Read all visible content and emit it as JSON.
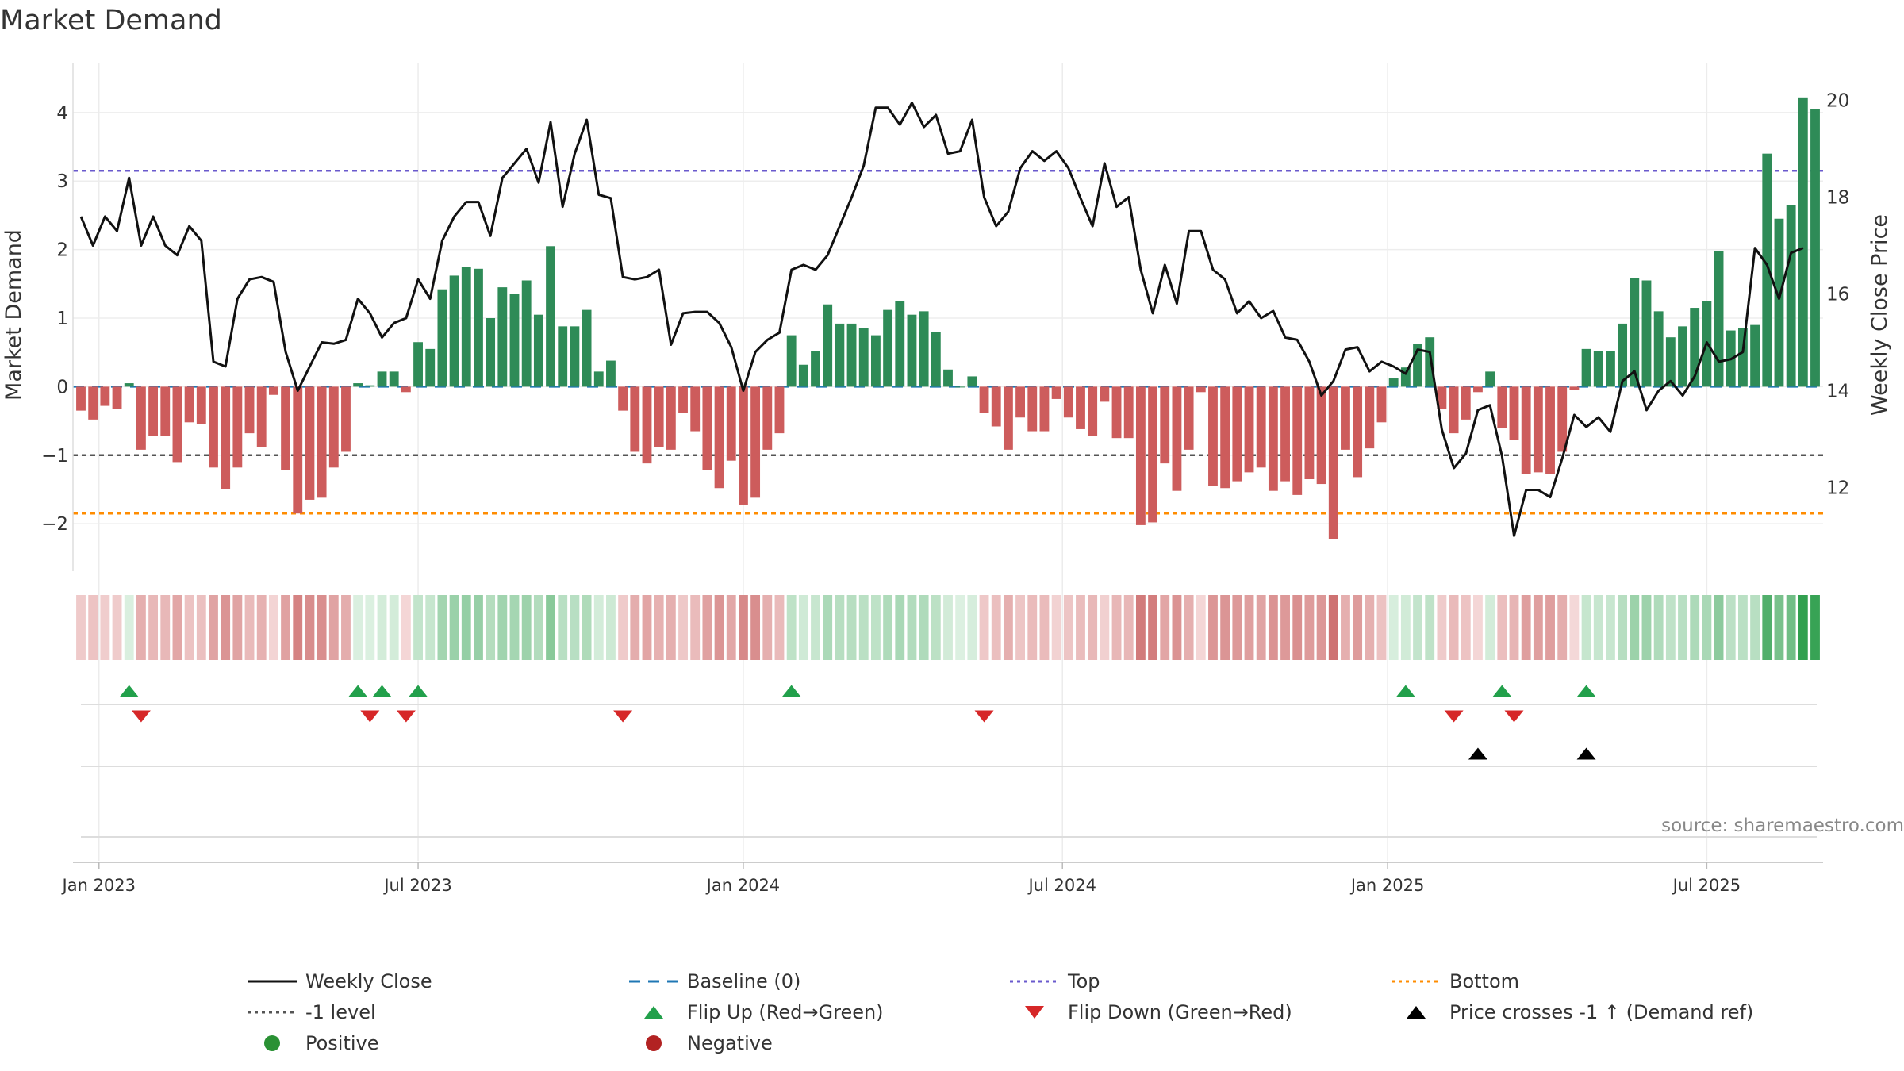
{
  "title": "Market Demand",
  "chart_data": {
    "type": "bar",
    "title": "Market Demand",
    "ylabel": "Market Demand",
    "y2label": "Weekly Close Price",
    "ylim": [
      -2.6,
      4.6
    ],
    "y2lim": [
      10.4,
      20.6
    ],
    "yticks": [
      "4",
      "3",
      "2",
      "1",
      "0",
      "−1",
      "−2"
    ],
    "yticks_values": [
      4,
      3,
      2,
      1,
      0,
      -1,
      -2
    ],
    "y2ticks": [
      "20",
      "18",
      "16",
      "14",
      "12"
    ],
    "y2ticks_values": [
      20,
      18,
      16,
      14,
      12
    ],
    "xticks": [
      "Jan 2023",
      "Jul 2023",
      "Jan 2024",
      "Jul 2024",
      "Jan 2025",
      "Jul 2025"
    ],
    "xticks_index": [
      1.5,
      28,
      55,
      81.5,
      108.5,
      135
    ],
    "reference_lines": {
      "top": 3.15,
      "minus_one": -1.0,
      "bottom": -1.85,
      "baseline": 0
    },
    "demand": [
      -0.35,
      -0.48,
      -0.28,
      -0.32,
      0.05,
      -0.92,
      -0.72,
      -0.72,
      -1.1,
      -0.52,
      -0.55,
      -1.18,
      -1.5,
      -1.18,
      -0.68,
      -0.88,
      -0.12,
      -1.22,
      -1.85,
      -1.65,
      -1.62,
      -1.18,
      -0.95,
      0.05,
      0.02,
      0.22,
      0.22,
      -0.08,
      0.65,
      0.55,
      1.42,
      1.62,
      1.75,
      1.72,
      1.0,
      1.45,
      1.35,
      1.55,
      1.05,
      2.05,
      0.88,
      0.88,
      1.12,
      0.22,
      0.38,
      -0.35,
      -0.95,
      -1.12,
      -0.88,
      -0.92,
      -0.38,
      -0.65,
      -1.22,
      -1.48,
      -1.08,
      -1.72,
      -1.62,
      -0.92,
      -0.68,
      0.75,
      0.32,
      0.52,
      1.2,
      0.92,
      0.92,
      0.85,
      0.75,
      1.12,
      1.25,
      1.05,
      1.1,
      0.8,
      0.25,
      0.0,
      0.15,
      -0.38,
      -0.58,
      -0.92,
      -0.45,
      -0.65,
      -0.65,
      -0.18,
      -0.45,
      -0.62,
      -0.72,
      -0.22,
      -0.75,
      -0.75,
      -2.02,
      -1.98,
      -1.12,
      -1.52,
      -0.92,
      -0.08,
      -1.45,
      -1.48,
      -1.38,
      -1.25,
      -1.18,
      -1.52,
      -1.38,
      -1.58,
      -1.35,
      -1.42,
      -2.22,
      -0.92,
      -1.32,
      -0.9,
      -0.52,
      0.12,
      0.28,
      0.62,
      0.72,
      -0.32,
      -0.68,
      -0.48,
      -0.08,
      0.22,
      -0.6,
      -0.78,
      -1.28,
      -1.25,
      -1.28,
      -0.95,
      -0.05,
      0.55,
      0.52,
      0.52,
      0.92,
      1.58,
      1.55,
      1.1,
      0.72,
      0.88,
      1.15,
      1.25,
      1.98,
      0.82,
      0.85,
      0.9,
      3.4,
      2.45,
      2.65,
      4.22,
      4.05
    ],
    "close": [
      17.6,
      17.0,
      17.6,
      17.3,
      18.4,
      17.0,
      17.6,
      17.0,
      16.8,
      17.4,
      17.1,
      14.6,
      14.5,
      15.9,
      16.3,
      16.35,
      16.25,
      14.8,
      14.0,
      14.5,
      15.0,
      14.97,
      15.05,
      15.9,
      15.6,
      15.1,
      15.4,
      15.5,
      16.3,
      15.9,
      17.1,
      17.6,
      17.9,
      17.9,
      17.2,
      18.4,
      18.7,
      19.0,
      18.3,
      19.55,
      17.8,
      18.9,
      19.6,
      18.05,
      17.98,
      16.35,
      16.3,
      16.35,
      16.5,
      14.95,
      15.6,
      15.63,
      15.63,
      15.4,
      14.9,
      14.0,
      14.8,
      15.05,
      15.2,
      16.5,
      16.6,
      16.5,
      16.8,
      17.4,
      18.0,
      18.65,
      19.85,
      19.85,
      19.5,
      19.95,
      19.45,
      19.7,
      18.9,
      18.95,
      19.6,
      18.0,
      17.4,
      17.7,
      18.6,
      18.95,
      18.75,
      18.95,
      18.6,
      17.98,
      17.4,
      18.7,
      17.8,
      18.0,
      16.5,
      15.6,
      16.6,
      15.8,
      17.3,
      17.3,
      16.5,
      16.3,
      15.6,
      15.85,
      15.5,
      15.65,
      15.1,
      15.05,
      14.6,
      13.9,
      14.2,
      14.85,
      14.9,
      14.4,
      14.6,
      14.5,
      14.35,
      14.85,
      14.8,
      13.2,
      12.4,
      12.7,
      13.6,
      13.7,
      12.65,
      11.0,
      11.95,
      11.95,
      11.8,
      12.6,
      13.5,
      13.25,
      13.45,
      13.15,
      14.2,
      14.4,
      13.6,
      14.0,
      14.2,
      13.9,
      14.3,
      15.0,
      14.6,
      14.65,
      14.8,
      16.95,
      16.6,
      15.9,
      16.85,
      16.95
    ],
    "flip_up_index": [
      4,
      23,
      25,
      28,
      59,
      110,
      118,
      125
    ],
    "flip_down_index": [
      5,
      24,
      27,
      45,
      75,
      114,
      119
    ],
    "price_cross_index": [
      116,
      125
    ],
    "watermark": "source: sharemaestro.com",
    "legend": [
      "Weekly Close",
      "-1 level",
      "Positive",
      "Baseline (0)",
      "Flip Up (Red→Green)",
      "Negative",
      "Top",
      "Flip Down (Green→Red)",
      "Bottom",
      "Price crosses -1 ↑ (Demand ref)"
    ],
    "legend_position": "bottom"
  },
  "colors": {
    "positive": "#2e8b57",
    "negative": "#cd5c5c",
    "price": "#111111",
    "baseline": "#1f77b4",
    "top": "#6a5acd",
    "minus_one": "#555555",
    "bottom": "#ff8c00",
    "flip_up": "#22a04b",
    "flip_down": "#d62728",
    "cross": "#000000",
    "pos_dot": "#2a9134",
    "neg_dot": "#b22222"
  }
}
